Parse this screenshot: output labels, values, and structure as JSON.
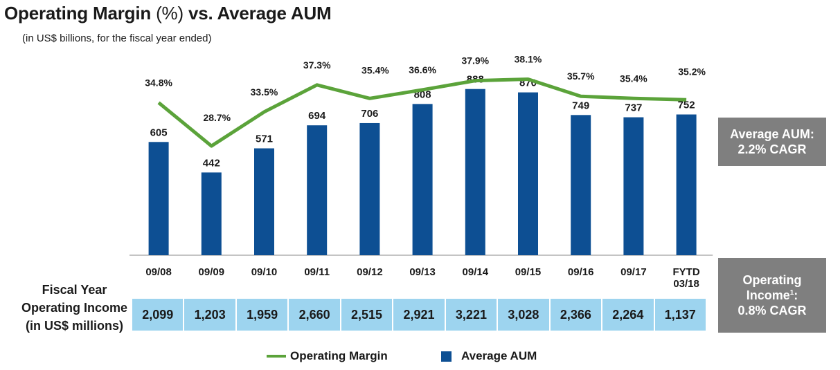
{
  "title": {
    "main": "Operating Margin",
    "paren": "(%)",
    "rest": "vs. Average AUM"
  },
  "subtitle": "(in US$ billions, for the fiscal year ended)",
  "colors": {
    "bar": "#0d4f93",
    "line": "#5ba33a",
    "table_cell": "#9dd4ef",
    "callout_box": "#7f7f7f"
  },
  "callouts": {
    "aum_line1": "Average AUM:",
    "aum_line2": "2.2% CAGR",
    "oi_line1": "Operating",
    "oi_line2a": "Income",
    "oi_sup": "1",
    "oi_line2b": ":",
    "oi_line3": "0.8% CAGR"
  },
  "table": {
    "label_line1": "Fiscal Year",
    "label_line2": "Operating Income",
    "label_line3": "(in US$ millions)",
    "values": [
      "2,099",
      "1,203",
      "1,959",
      "2,660",
      "2,515",
      "2,921",
      "3,221",
      "3,028",
      "2,366",
      "2,264",
      "1,137"
    ]
  },
  "legend": {
    "line": "Operating Margin",
    "bar": "Average AUM"
  },
  "chart_data": {
    "type": "bar+line",
    "title": "Operating Margin (%) vs. Average AUM",
    "subtitle": "(in US$ billions, for the fiscal year ended)",
    "categories": [
      [
        "09/08"
      ],
      [
        "09/09"
      ],
      [
        "09/10"
      ],
      [
        "09/11"
      ],
      [
        "09/12"
      ],
      [
        "09/13"
      ],
      [
        "09/14"
      ],
      [
        "09/15"
      ],
      [
        "09/16"
      ],
      [
        "09/17"
      ],
      [
        "FYTD",
        "03/18"
      ]
    ],
    "series": [
      {
        "name": "Average AUM",
        "kind": "bar",
        "values": [
          605,
          442,
          571,
          694,
          706,
          808,
          888,
          870,
          749,
          737,
          752
        ],
        "labels": [
          "605",
          "442",
          "571",
          "694",
          "706",
          "808",
          "888",
          "870",
          "749",
          "737",
          "752"
        ]
      },
      {
        "name": "Operating Margin",
        "kind": "line",
        "values": [
          34.8,
          28.7,
          33.5,
          37.3,
          35.4,
          36.6,
          37.9,
          38.1,
          35.7,
          35.4,
          35.2
        ],
        "labels": [
          "34.8%",
          "28.7%",
          "33.5%",
          "37.3%",
          "35.4%",
          "36.6%",
          "37.9%",
          "38.1%",
          "35.7%",
          "35.4%",
          "35.2%"
        ]
      }
    ],
    "bar_axis_range": [
      0,
      1200
    ],
    "line_axis_range": [
      22,
      40
    ],
    "legend_position": "bottom"
  }
}
